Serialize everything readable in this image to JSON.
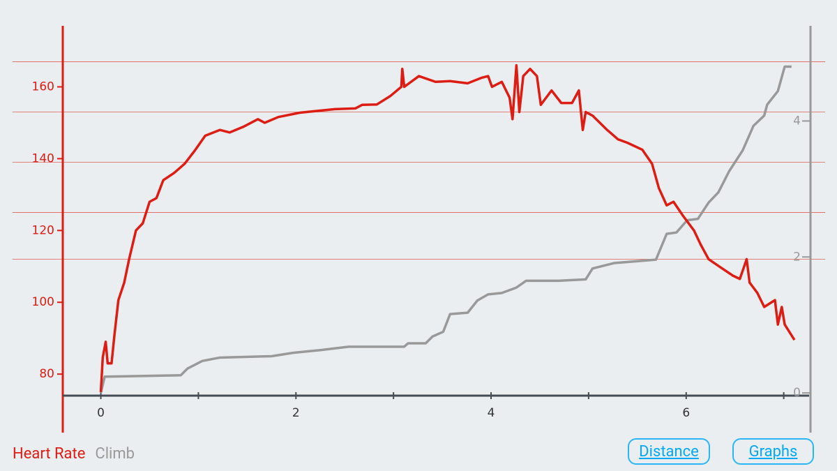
{
  "chart_data": {
    "type": "line",
    "xlim": [
      -0.39,
      7.26
    ],
    "xticks": [
      0,
      2,
      4,
      6
    ],
    "x_minor_ticks": [
      1,
      3,
      5,
      7
    ],
    "ylim": [
      74,
      177
    ],
    "yticks": [
      80,
      100,
      120,
      140,
      160
    ],
    "y2lim": [
      -0.04,
      5.4
    ],
    "y2ticks": [
      0,
      2,
      4
    ],
    "zone_lines": [
      167,
      153,
      139,
      125,
      112
    ],
    "series": [
      {
        "name": "Heart Rate",
        "color": "#dd1c13",
        "x": [
          0,
          0.02,
          0.05,
          0.07,
          0.11,
          0.14,
          0.18,
          0.24,
          0.29,
          0.36,
          0.43,
          0.5,
          0.57,
          0.64,
          0.75,
          0.86,
          0.97,
          1.07,
          1.22,
          1.32,
          1.47,
          1.61,
          1.68,
          1.82,
          2.04,
          2.18,
          2.4,
          2.61,
          2.68,
          2.83,
          2.97,
          3.08,
          3.09,
          3.11,
          3.26,
          3.43,
          3.58,
          3.76,
          3.9,
          3.97,
          4.01,
          4.11,
          4.19,
          4.22,
          4.26,
          4.29,
          4.33,
          4.4,
          4.47,
          4.51,
          4.62,
          4.72,
          4.83,
          4.9,
          4.94,
          4.97,
          5.04,
          5.19,
          5.3,
          5.4,
          5.55,
          5.65,
          5.72,
          5.8,
          5.87,
          5.97,
          6.08,
          6.15,
          6.23,
          6.37,
          6.48,
          6.55,
          6.62,
          6.65,
          6.73,
          6.8,
          6.91,
          6.94,
          6.98,
          7.01,
          7.11
        ],
        "values": [
          75,
          84.7,
          89,
          83,
          83,
          91,
          100.6,
          105.5,
          112,
          120,
          122,
          128,
          129,
          134,
          136,
          138.6,
          142.5,
          146.4,
          148,
          147.3,
          149,
          151,
          150,
          151.6,
          152.8,
          153.2,
          153.8,
          154,
          155,
          155.1,
          157.5,
          160,
          165,
          160,
          163,
          161.4,
          161.6,
          161,
          162.5,
          163,
          160,
          161.4,
          157,
          151,
          166,
          153,
          163,
          165,
          163,
          155,
          159,
          155.5,
          155.5,
          159,
          148,
          153,
          152,
          148,
          145.4,
          144.4,
          142.5,
          138.6,
          131.8,
          127,
          128,
          124,
          120,
          116,
          112,
          109.4,
          107.4,
          106.5,
          112,
          105.5,
          102.6,
          98.7,
          100.6,
          93.8,
          98.7,
          93.8,
          89.5
        ]
      },
      {
        "name": "Climb",
        "color": "#999999",
        "axis": "y2",
        "x": [
          0,
          0.04,
          0.07,
          0.82,
          0.89,
          1.04,
          1.22,
          1.75,
          1.97,
          2.25,
          2.54,
          3.11,
          3.15,
          3.33,
          3.4,
          3.51,
          3.58,
          3.76,
          3.86,
          3.97,
          4.11,
          4.26,
          4.36,
          4.69,
          4.97,
          5.04,
          5.26,
          5.69,
          5.8,
          5.9,
          6.01,
          6.12,
          6.23,
          6.33,
          6.44,
          6.58,
          6.69,
          6.8,
          6.83,
          6.94,
          7.01,
          7.08
        ],
        "values": [
          0,
          0.24,
          0.24,
          0.26,
          0.36,
          0.47,
          0.52,
          0.54,
          0.59,
          0.63,
          0.68,
          0.68,
          0.73,
          0.73,
          0.83,
          0.9,
          1.16,
          1.18,
          1.36,
          1.45,
          1.47,
          1.55,
          1.65,
          1.65,
          1.67,
          1.83,
          1.91,
          1.96,
          2.34,
          2.36,
          2.54,
          2.56,
          2.8,
          2.95,
          3.26,
          3.57,
          3.93,
          4.08,
          4.24,
          4.44,
          4.8,
          4.8
        ]
      }
    ]
  },
  "buttons": [
    "Distance",
    "Graphs"
  ]
}
